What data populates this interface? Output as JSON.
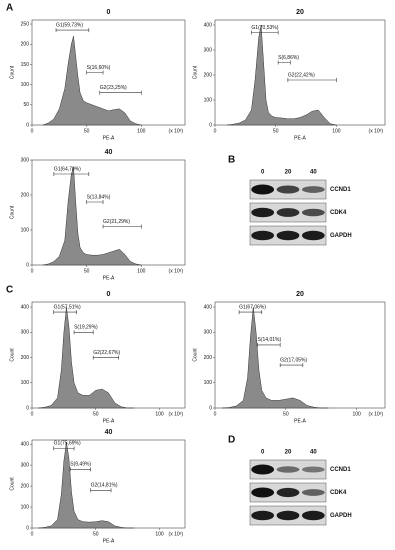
{
  "figure": {
    "panel_a": "A",
    "panel_c": "C"
  },
  "chart_data": [
    {
      "type": "area",
      "title": "0",
      "xlabel": "PE-A",
      "ylabel": "Count",
      "x_unit": "(x 10³)",
      "color": "#8a8a8a",
      "x": [
        10,
        15,
        20,
        25,
        30,
        33,
        36,
        38,
        40,
        42,
        44,
        47,
        50,
        55,
        60,
        65,
        70,
        75,
        80,
        85,
        90,
        95,
        100
      ],
      "values": [
        0,
        5,
        15,
        40,
        90,
        150,
        200,
        220,
        170,
        120,
        80,
        60,
        55,
        50,
        45,
        40,
        35,
        38,
        40,
        30,
        10,
        3,
        0
      ],
      "xlim": [
        0,
        140
      ],
      "xticks": [
        0,
        50,
        100
      ],
      "ylim": [
        0,
        260
      ],
      "yticks": [
        0,
        50,
        100,
        150,
        200,
        250
      ],
      "gates": [
        {
          "label": "G1(59,73%)",
          "x": [
            22,
            52
          ],
          "y": 235
        },
        {
          "label": "S(16,60%)",
          "x": [
            50,
            65
          ],
          "y": 130
        },
        {
          "label": "G2(23,25%)",
          "x": [
            62,
            100
          ],
          "y": 80
        }
      ]
    },
    {
      "type": "area",
      "title": "20",
      "xlabel": "PE-A",
      "ylabel": "Count",
      "x_unit": "(x 10³)",
      "color": "#8a8a8a",
      "x": [
        10,
        15,
        20,
        25,
        30,
        33,
        36,
        38,
        40,
        42,
        44,
        47,
        50,
        55,
        60,
        65,
        70,
        75,
        80,
        85,
        90,
        95,
        100
      ],
      "values": [
        0,
        3,
        8,
        20,
        60,
        180,
        350,
        400,
        250,
        100,
        50,
        35,
        30,
        28,
        25,
        25,
        30,
        40,
        55,
        60,
        30,
        5,
        0
      ],
      "xlim": [
        0,
        140
      ],
      "xticks": [
        0,
        50,
        100
      ],
      "ylim": [
        0,
        420
      ],
      "yticks": [
        0,
        100,
        200,
        300,
        400
      ],
      "gates": [
        {
          "label": "G1(70,53%)",
          "x": [
            30,
            52
          ],
          "y": 370
        },
        {
          "label": "S(6,86%)",
          "x": [
            52,
            62
          ],
          "y": 250
        },
        {
          "label": "G2(22,42%)",
          "x": [
            60,
            100
          ],
          "y": 180
        }
      ]
    },
    {
      "type": "area",
      "title": "40",
      "xlabel": "PE-A",
      "ylabel": "Count",
      "x_unit": "(x 10³)",
      "color": "#8a8a8a",
      "x": [
        10,
        15,
        20,
        25,
        30,
        33,
        36,
        38,
        40,
        42,
        44,
        47,
        50,
        55,
        60,
        65,
        70,
        75,
        80,
        85,
        90,
        95,
        100
      ],
      "values": [
        0,
        3,
        10,
        25,
        70,
        180,
        260,
        280,
        180,
        90,
        50,
        35,
        30,
        28,
        28,
        30,
        35,
        40,
        45,
        30,
        10,
        3,
        0
      ],
      "xlim": [
        0,
        140
      ],
      "xticks": [
        0,
        50,
        100
      ],
      "ylim": [
        0,
        300
      ],
      "yticks": [
        0,
        100,
        200,
        300
      ],
      "gates": [
        {
          "label": "G1(64,70%)",
          "x": [
            20,
            52
          ],
          "y": 260
        },
        {
          "label": "S(13,84%)",
          "x": [
            50,
            65
          ],
          "y": 180
        },
        {
          "label": "G2(21,29%)",
          "x": [
            65,
            100
          ],
          "y": 110
        }
      ]
    },
    {
      "type": "area",
      "title": "0",
      "xlabel": "PE-A",
      "ylabel": "Count",
      "x_unit": "(x 10³)",
      "color": "#8a8a8a",
      "x": [
        5,
        10,
        15,
        20,
        23,
        25,
        27,
        29,
        31,
        33,
        36,
        40,
        45,
        50,
        55,
        60,
        65,
        70,
        75,
        80
      ],
      "values": [
        0,
        3,
        10,
        40,
        150,
        300,
        400,
        320,
        180,
        100,
        60,
        50,
        50,
        70,
        75,
        60,
        20,
        5,
        0,
        0
      ],
      "xlim": [
        0,
        120
      ],
      "xticks": [
        0,
        50,
        100
      ],
      "ylim": [
        0,
        420
      ],
      "yticks": [
        0,
        100,
        200,
        300,
        400
      ],
      "gates": [
        {
          "label": "G1(57,51%)",
          "x": [
            17,
            35
          ],
          "y": 380
        },
        {
          "label": "S(19,29%)",
          "x": [
            33,
            48
          ],
          "y": 300
        },
        {
          "label": "G2(22,67%)",
          "x": [
            48,
            68
          ],
          "y": 200
        }
      ]
    },
    {
      "type": "area",
      "title": "20",
      "xlabel": "PE-A",
      "ylabel": "Count",
      "x_unit": "(x 10³)",
      "color": "#8a8a8a",
      "x": [
        5,
        10,
        15,
        20,
        23,
        25,
        27,
        29,
        31,
        33,
        36,
        40,
        45,
        50,
        55,
        60,
        65,
        70,
        75,
        80
      ],
      "values": [
        0,
        2,
        8,
        30,
        120,
        280,
        400,
        300,
        150,
        70,
        40,
        30,
        30,
        35,
        40,
        30,
        10,
        3,
        0,
        0
      ],
      "xlim": [
        0,
        120
      ],
      "xticks": [
        0,
        50,
        100
      ],
      "ylim": [
        0,
        420
      ],
      "yticks": [
        0,
        100,
        200,
        300,
        400
      ],
      "gates": [
        {
          "label": "G1(67,06%)",
          "x": [
            17,
            33
          ],
          "y": 380
        },
        {
          "label": "S(14,01%)",
          "x": [
            30,
            46
          ],
          "y": 250
        },
        {
          "label": "G2(17,05%)",
          "x": [
            46,
            62
          ],
          "y": 170
        }
      ]
    },
    {
      "type": "area",
      "title": "40",
      "xlabel": "PE-A",
      "ylabel": "Count",
      "x_unit": "(x 10³)",
      "color": "#8a8a8a",
      "x": [
        5,
        10,
        15,
        20,
        23,
        25,
        27,
        29,
        31,
        33,
        36,
        40,
        45,
        50,
        55,
        60,
        65,
        70,
        75,
        80
      ],
      "values": [
        0,
        3,
        10,
        40,
        160,
        320,
        410,
        330,
        170,
        80,
        40,
        30,
        28,
        30,
        35,
        30,
        10,
        3,
        0,
        0
      ],
      "xlim": [
        0,
        120
      ],
      "xticks": [
        0,
        50,
        100
      ],
      "ylim": [
        0,
        420
      ],
      "yticks": [
        0,
        100,
        200,
        300,
        400
      ],
      "gates": [
        {
          "label": "G1(75,69%)",
          "x": [
            17,
            33
          ],
          "y": 380
        },
        {
          "label": "S(9,49%)",
          "x": [
            30,
            46
          ],
          "y": 280
        },
        {
          "label": "G2(14,81%)",
          "x": [
            46,
            62
          ],
          "y": 180
        }
      ]
    }
  ],
  "blots": [
    {
      "label": "B",
      "lanes": [
        "0",
        "20",
        "40"
      ],
      "rows": [
        "CCND1",
        "CDK4",
        "GAPDH"
      ]
    },
    {
      "label": "D",
      "lanes": [
        "0",
        "20",
        "40"
      ],
      "rows": [
        "CCND1",
        "CDK4",
        "GAPDH"
      ]
    }
  ]
}
